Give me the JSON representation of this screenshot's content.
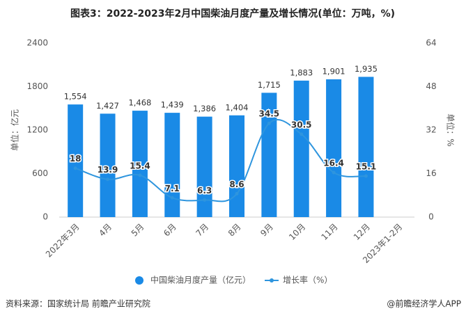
{
  "chart_data": {
    "type": "bar-line",
    "title": "图表3：2022-2023年2月中国柴油月度产量及增长情况(单位：万吨，%)",
    "ylabel": "单位：亿元",
    "y2label": "单位：%",
    "categories": [
      "2022年3月",
      "4月",
      "5月",
      "6月",
      "7月",
      "8月",
      "9月",
      "10月",
      "11月",
      "12月",
      "2023年1-2月"
    ],
    "series": [
      {
        "name": "中国柴油月度产量（亿元）",
        "type": "bar",
        "axis": "y",
        "color": "#1a8ae6",
        "values": [
          1554,
          1427,
          1468,
          1439,
          1386,
          1404,
          1715,
          1883,
          1901,
          1935,
          null
        ],
        "value_labels": [
          "1,554",
          "1,427",
          "1,468",
          "1,439",
          "1,386",
          "1,404",
          "1,715",
          "1,883",
          "1,901",
          "1,935",
          null
        ]
      },
      {
        "name": "增长率（%）",
        "type": "line",
        "axis": "y2",
        "color": "#2e95de",
        "values": [
          18,
          13.9,
          15.4,
          7.1,
          6.3,
          8.6,
          34.5,
          30.5,
          16.4,
          15.1,
          null
        ]
      }
    ],
    "ylim": [
      0,
      2400
    ],
    "yticks": [
      0,
      600,
      1200,
      1800,
      2400
    ],
    "y2lim": [
      0,
      64
    ],
    "y2ticks": [
      0,
      16,
      32,
      48,
      64
    ],
    "grid": false,
    "source": "资料来源：国家统计局 前瞻产业研究院",
    "credit": "@前瞻经济学人APP"
  }
}
